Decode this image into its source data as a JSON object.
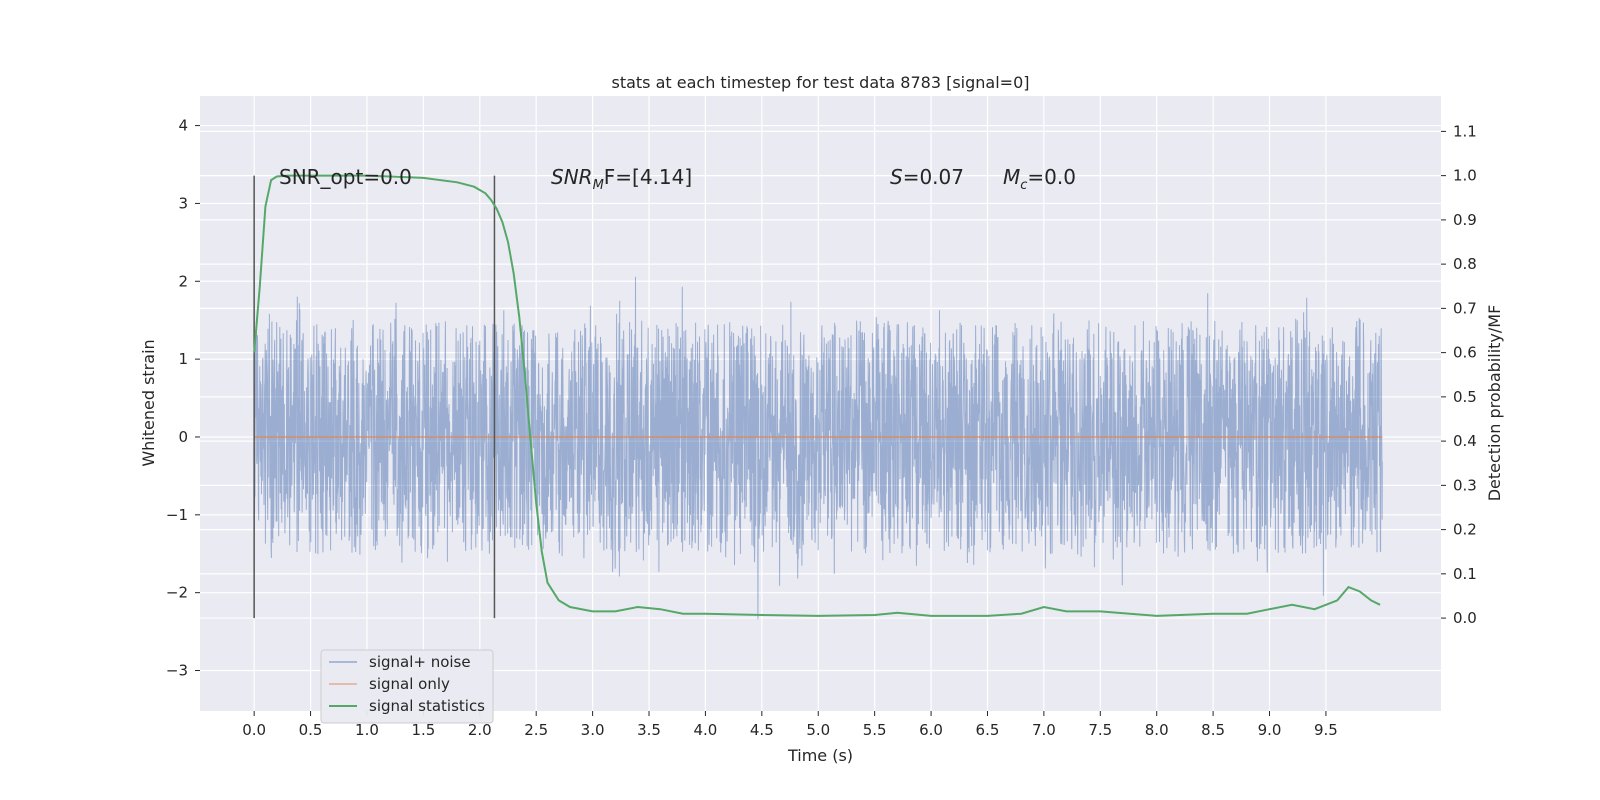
{
  "chart_data": {
    "type": "line",
    "title": "stats at each timestep for test data 8783 [signal=0]",
    "xlabel": "Time (s)",
    "ylabel": "Whitened strain",
    "y2label": "Detection probability/MF",
    "xlim": [
      -0.48,
      10.52
    ],
    "ylim": [
      -3.52,
      4.38
    ],
    "y2lim": [
      -0.21,
      1.18
    ],
    "x_ticks": [
      "0.0",
      "0.5",
      "1.0",
      "1.5",
      "2.0",
      "2.5",
      "3.0",
      "3.5",
      "4.0",
      "4.5",
      "5.0",
      "5.5",
      "6.0",
      "6.5",
      "7.0",
      "7.5",
      "8.0",
      "8.5",
      "9.0",
      "9.5"
    ],
    "y_ticks": [
      "4",
      "3",
      "2",
      "1",
      "0",
      "−1",
      "−2",
      "−3"
    ],
    "y2_ticks": [
      "1.1",
      "1.0",
      "0.9",
      "0.8",
      "0.7",
      "0.6",
      "0.5",
      "0.4",
      "0.3",
      "0.2",
      "0.1",
      "0.0"
    ],
    "grid": true,
    "legend_position": "lower-left",
    "colors": {
      "noise": "#4c72b0",
      "signal": "#dd8452",
      "stats": "#55a868",
      "background": "#eaeaf2",
      "markers": "#555555"
    },
    "annotations": {
      "snr_opt": "SNR_opt=0.0",
      "snr_mf_name": "SNR",
      "snr_mf_sub": "M",
      "snr_mf_rest": "F=[4.14]",
      "s_name": "S",
      "s_rest": "=0.07",
      "mc_name": "M",
      "mc_sub": "c",
      "mc_rest": "=0.0"
    },
    "vertical_markers_x": [
      0.0,
      2.13
    ],
    "series": [
      {
        "name": "signal+ noise",
        "envelope": {
          "x_range": [
            0.0,
            10.0
          ],
          "core_half_amplitude": 1.5,
          "typical_max": 2.3,
          "typical_min": -2.3
        }
      },
      {
        "name": "signal only",
        "x_range": [
          0.0,
          10.0
        ],
        "value": 0.0
      },
      {
        "name": "signal statistics",
        "axis": "right",
        "x": [
          0.0,
          0.05,
          0.1,
          0.15,
          0.2,
          0.3,
          0.5,
          1.0,
          1.5,
          1.8,
          1.95,
          2.05,
          2.1,
          2.15,
          2.2,
          2.25,
          2.3,
          2.35,
          2.4,
          2.45,
          2.5,
          2.55,
          2.6,
          2.7,
          2.8,
          3.0,
          3.2,
          3.4,
          3.6,
          3.8,
          4.0,
          4.5,
          5.0,
          5.5,
          5.7,
          6.0,
          6.5,
          6.8,
          7.0,
          7.2,
          7.5,
          8.0,
          8.5,
          8.8,
          9.0,
          9.2,
          9.4,
          9.6,
          9.7,
          9.8,
          9.9,
          9.98
        ],
        "y": [
          0.6,
          0.75,
          0.93,
          0.99,
          0.998,
          1.0,
          1.0,
          1.0,
          0.995,
          0.985,
          0.975,
          0.96,
          0.945,
          0.925,
          0.895,
          0.85,
          0.78,
          0.68,
          0.55,
          0.4,
          0.26,
          0.15,
          0.08,
          0.04,
          0.025,
          0.015,
          0.015,
          0.025,
          0.02,
          0.01,
          0.01,
          0.007,
          0.005,
          0.007,
          0.012,
          0.005,
          0.005,
          0.01,
          0.025,
          0.015,
          0.015,
          0.005,
          0.01,
          0.01,
          0.02,
          0.03,
          0.02,
          0.04,
          0.07,
          0.06,
          0.04,
          0.03
        ]
      }
    ]
  }
}
